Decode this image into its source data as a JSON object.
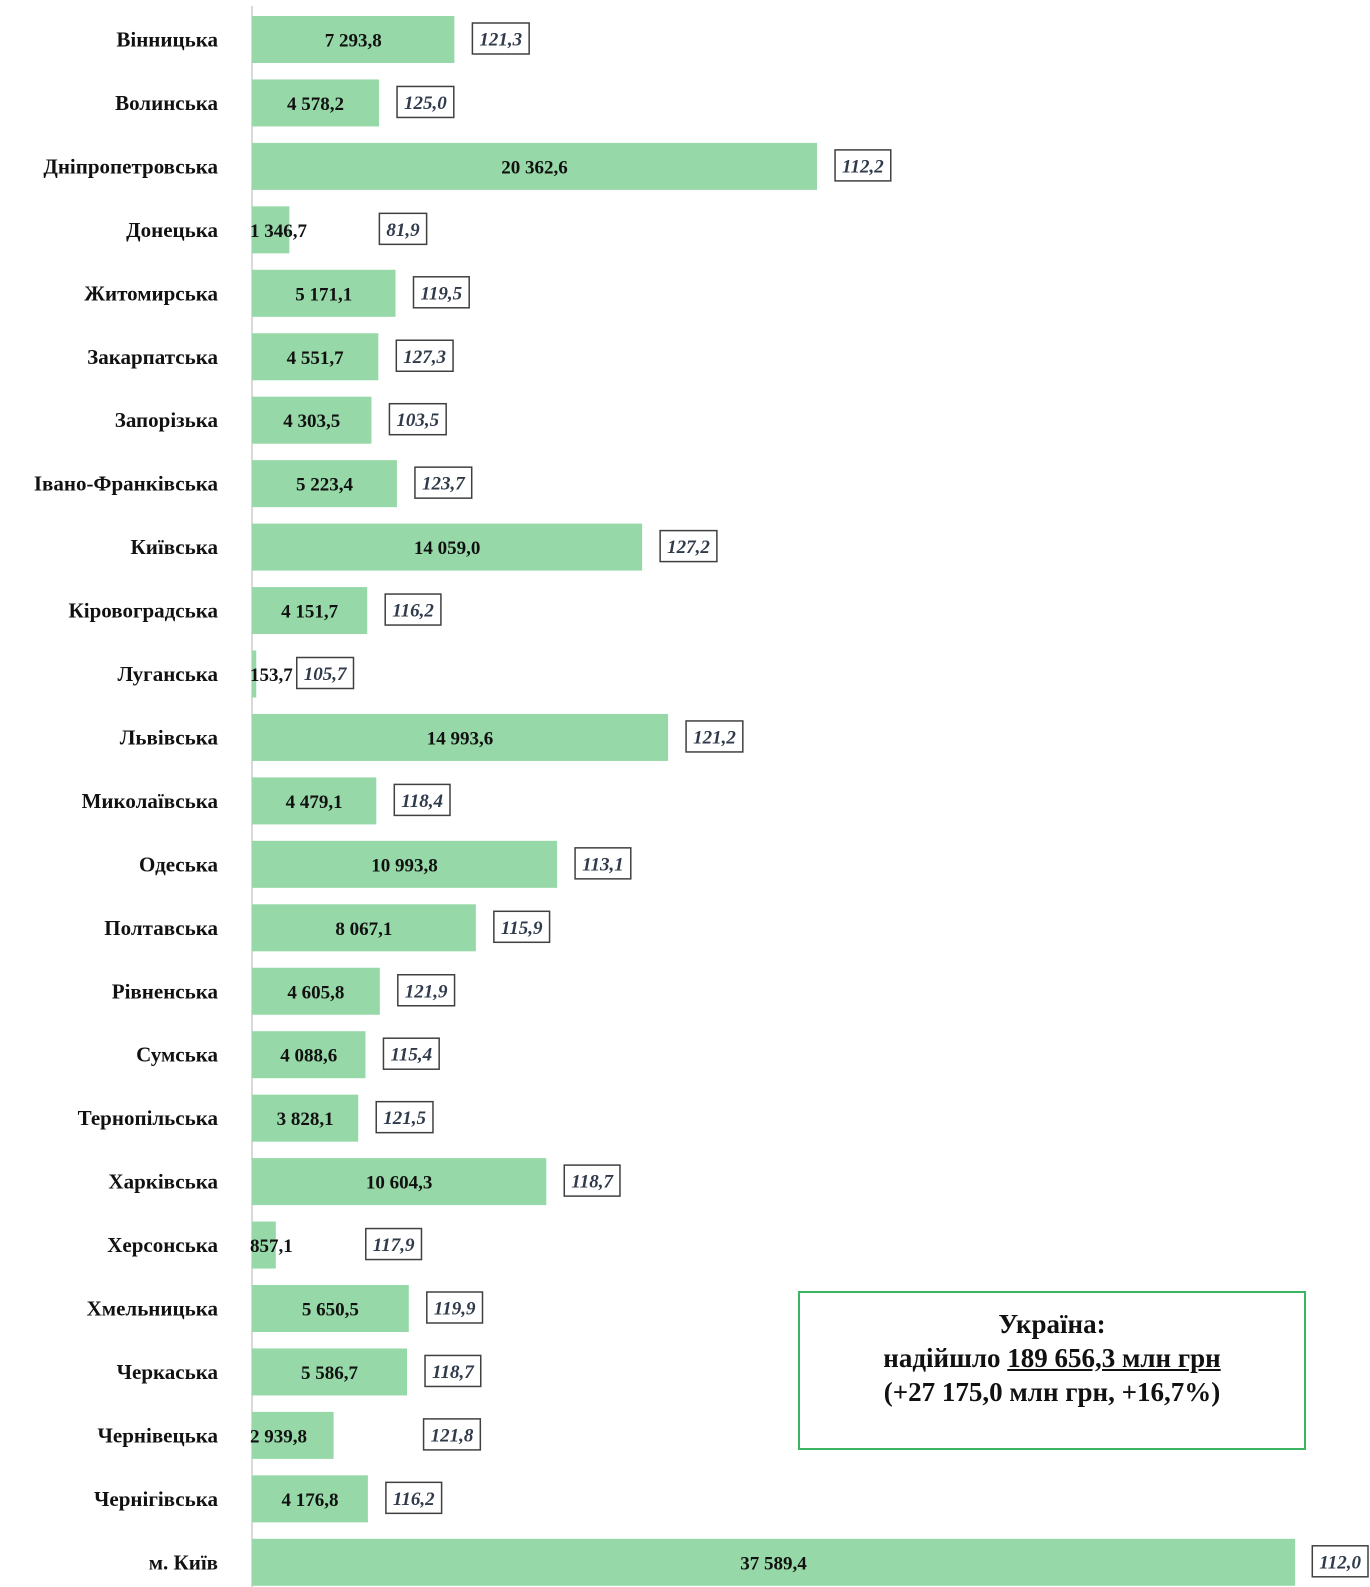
{
  "chart_data": {
    "type": "bar",
    "orientation": "horizontal",
    "categories": [
      "Вінницька",
      "Волинська",
      "Дніпропетровська",
      "Донецька",
      "Житомирська",
      "Закарпатська",
      "Запорізька",
      "Івано-Франківська",
      "Київська",
      "Кіровоградська",
      "Луганська",
      "Львівська",
      "Миколаївська",
      "Одеська",
      "Полтавська",
      "Рівненська",
      "Сумська",
      "Тернопільська",
      "Харківська",
      "Херсонська",
      "Хмельницька",
      "Черкаська",
      "Чернівецька",
      "Чернігівська",
      "м. Київ"
    ],
    "values": [
      7293.8,
      4578.2,
      20362.6,
      1346.7,
      5171.1,
      4551.7,
      4303.5,
      5223.4,
      14059.0,
      4151.7,
      153.7,
      14993.6,
      4479.1,
      10993.8,
      8067.1,
      4605.8,
      4088.6,
      3828.1,
      10604.3,
      857.1,
      5650.5,
      5586.7,
      2939.8,
      4176.8,
      37589.4
    ],
    "value_labels": [
      "7 293,8",
      "4 578,2",
      "20 362,6",
      "1 346,7",
      "5 171,1",
      "4 551,7",
      "4 303,5",
      "5 223,4",
      "14 059,0",
      "4 151,7",
      "153,7",
      "14 993,6",
      "4 479,1",
      "10 993,8",
      "8 067,1",
      "4 605,8",
      "4 088,6",
      "3 828,1",
      "10 604,3",
      "857,1",
      "5 650,5",
      "5 586,7",
      "2 939,8",
      "4 176,8",
      "37 589,4"
    ],
    "index_labels": [
      "121,3",
      "125,0",
      "112,2",
      "81,9",
      "119,5",
      "127,3",
      "103,5",
      "123,7",
      "127,2",
      "116,2",
      "105,7",
      "121,2",
      "118,4",
      "113,1",
      "115,9",
      "121,9",
      "115,4",
      "121,5",
      "118,7",
      "117,9",
      "119,9",
      "118,7",
      "121,8",
      "116,2",
      "112,0"
    ],
    "bar_color": "#96d8a7",
    "grid": false,
    "legend": "none"
  },
  "summary": {
    "line1": "Україна:",
    "line2_prefix": "надійшло ",
    "line2_amount": "189 656,3 млн грн",
    "line3": "(+27 175,0 млн грн, +16,7%)",
    "border_color": "#3cb563"
  }
}
